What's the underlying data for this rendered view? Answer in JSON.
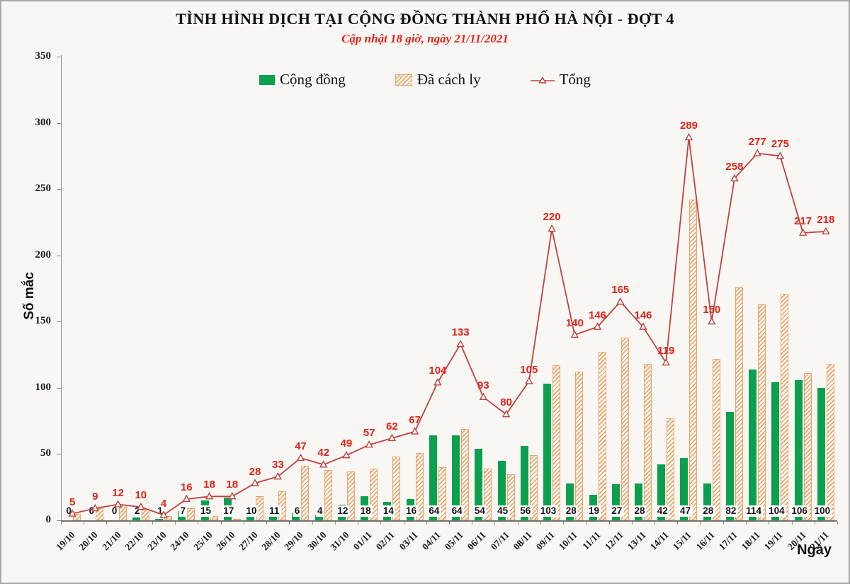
{
  "title": "TÌNH HÌNH DỊCH TẠI CỘNG ĐỒNG THÀNH PHỐ HÀ NỘI - ĐỢT 4",
  "subtitle": "Cập nhật 18 giờ, ngày 21/11/2021",
  "legend": [
    {
      "label": "Cộng đồng",
      "swatch": "green-bar"
    },
    {
      "label": "Đã cách ly",
      "swatch": "hatched-bar"
    },
    {
      "label": "Tổng",
      "swatch": "red-line-triangle-marker"
    }
  ],
  "y_axis": {
    "label": "Số mắc",
    "ticks": [
      0,
      50,
      100,
      150,
      200,
      250,
      300,
      350
    ]
  },
  "x_axis": {
    "label": "Ngày"
  },
  "colors": {
    "green": "#0aa04e",
    "orange": "#eda266",
    "line": "#c0413e",
    "label_red": "#e2231a"
  },
  "chart_data": {
    "type": "bar",
    "subtype": "grouped bars + line overlay",
    "title": "TÌNH HÌNH DỊCH TẠI CỘNG ĐỒNG THÀNH PHỐ HÀ NỘI - ĐỢT 4",
    "subtitle": "Cập nhật 18 giờ, ngày 21/11/2021",
    "xlabel": "Ngày",
    "ylabel": "Số mắc",
    "ylim": [
      0,
      350
    ],
    "grid": false,
    "legend_position": "top-center",
    "x_tick_rotation": 45,
    "categories": [
      "19/10",
      "20/10",
      "21/10",
      "22/10",
      "23/10",
      "24/10",
      "25/10",
      "26/10",
      "27/10",
      "28/10",
      "29/10",
      "30/10",
      "31/10",
      "01/11",
      "02/11",
      "03/11",
      "04/11",
      "05/11",
      "06/11",
      "07/11",
      "08/11",
      "09/11",
      "10/11",
      "11/11",
      "12/11",
      "13/11",
      "14/11",
      "15/11",
      "16/11",
      "17/11",
      "18/11",
      "19/11",
      "20/11",
      "21/11"
    ],
    "series": [
      {
        "name": "Cộng đồng",
        "type": "bar",
        "style": "solid-green",
        "labels_shown": true,
        "values": [
          0,
          0,
          0,
          2,
          1,
          7,
          15,
          17,
          10,
          11,
          6,
          4,
          12,
          18,
          14,
          16,
          64,
          64,
          54,
          45,
          56,
          103,
          28,
          19,
          27,
          28,
          42,
          47,
          28,
          82,
          114,
          104,
          106,
          100
        ]
      },
      {
        "name": "Đã cách ly",
        "type": "bar",
        "style": "orange-diagonal-hatch",
        "labels_shown": false,
        "values": [
          5,
          9,
          12,
          8,
          3,
          9,
          3,
          1,
          18,
          22,
          41,
          38,
          37,
          39,
          48,
          51,
          40,
          69,
          39,
          35,
          49,
          117,
          112,
          127,
          138,
          118,
          77,
          242,
          122,
          176,
          163,
          171,
          111,
          118
        ]
      },
      {
        "name": "Tổng",
        "type": "line",
        "style": "red-line-open-triangle-markers",
        "labels_shown": true,
        "values": [
          5,
          9,
          12,
          10,
          4,
          16,
          18,
          18,
          28,
          33,
          47,
          42,
          49,
          57,
          62,
          67,
          104,
          133,
          93,
          80,
          105,
          220,
          140,
          146,
          165,
          146,
          119,
          289,
          150,
          258,
          277,
          275,
          217,
          218
        ]
      }
    ]
  }
}
